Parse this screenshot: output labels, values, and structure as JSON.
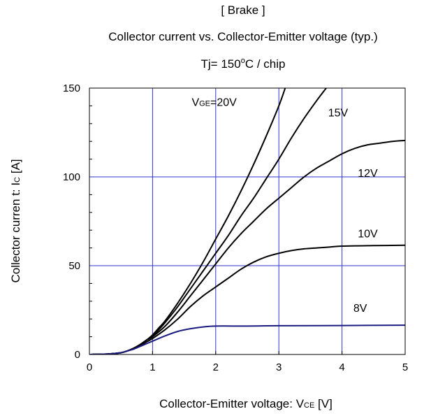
{
  "chart_data": {
    "type": "line",
    "title": "[ Brake ]",
    "subtitle": "Collector current vs. Collector-Emitter voltage (typ.)",
    "condition_parts": {
      "main": "Tj= 150",
      "sup": "o",
      "rest": "C / chip"
    },
    "xlabel_parts": {
      "main": "Collector-Emitter voltage: V",
      "sub": "CE",
      "rest": " [V]"
    },
    "ylabel_parts": {
      "main": "Collector curren t: I",
      "sub": "C",
      "rest": " [A]"
    },
    "xlim": [
      0,
      5
    ],
    "ylim": [
      0,
      150
    ],
    "xticks": [
      "0",
      "1",
      "2",
      "3",
      "4",
      "5"
    ],
    "yticks": [
      "0",
      "50",
      "100",
      "150"
    ],
    "grid": true,
    "colors": {
      "curve": "#000000",
      "curve_8v": "#1a1a80",
      "grid": "#3333cc"
    },
    "series": [
      {
        "name": "V_GE=20V",
        "label_parts": {
          "main": "V",
          "sub": "GE",
          "rest": "=20V"
        },
        "label_at": [
          1.62,
          140
        ],
        "points": [
          [
            0,
            0
          ],
          [
            0.3,
            0.3
          ],
          [
            0.5,
            1
          ],
          [
            0.6,
            2
          ],
          [
            0.7,
            3.5
          ],
          [
            0.8,
            5.5
          ],
          [
            0.9,
            8
          ],
          [
            1.0,
            11
          ],
          [
            1.1,
            15
          ],
          [
            1.2,
            19
          ],
          [
            1.4,
            29
          ],
          [
            1.6,
            40
          ],
          [
            1.8,
            52
          ],
          [
            2.0,
            65
          ],
          [
            2.2,
            78
          ],
          [
            2.4,
            92
          ],
          [
            2.6,
            107
          ],
          [
            2.8,
            123
          ],
          [
            3.0,
            140
          ],
          [
            3.1,
            150
          ]
        ]
      },
      {
        "name": "15V",
        "label_parts": {
          "main": "15V"
        },
        "label_at": [
          3.78,
          134
        ],
        "points": [
          [
            0,
            0
          ],
          [
            0.3,
            0.3
          ],
          [
            0.5,
            1
          ],
          [
            0.6,
            2
          ],
          [
            0.7,
            3.5
          ],
          [
            0.8,
            5.5
          ],
          [
            0.9,
            8
          ],
          [
            1.0,
            10.5
          ],
          [
            1.1,
            14
          ],
          [
            1.2,
            18
          ],
          [
            1.4,
            27
          ],
          [
            1.6,
            37
          ],
          [
            1.8,
            47
          ],
          [
            2.0,
            57
          ],
          [
            2.2,
            67
          ],
          [
            2.4,
            78
          ],
          [
            2.6,
            88
          ],
          [
            2.8,
            99
          ],
          [
            3.0,
            110
          ],
          [
            3.2,
            122
          ],
          [
            3.4,
            133
          ],
          [
            3.6,
            143
          ],
          [
            3.75,
            150
          ]
        ]
      },
      {
        "name": "12V",
        "label_parts": {
          "main": "12V"
        },
        "label_at": [
          4.25,
          100
        ],
        "points": [
          [
            0,
            0
          ],
          [
            0.3,
            0.3
          ],
          [
            0.5,
            1
          ],
          [
            0.6,
            2
          ],
          [
            0.7,
            3.5
          ],
          [
            0.8,
            5.5
          ],
          [
            0.9,
            8
          ],
          [
            1.0,
            10
          ],
          [
            1.2,
            16
          ],
          [
            1.4,
            24
          ],
          [
            1.6,
            33
          ],
          [
            1.8,
            42
          ],
          [
            2.0,
            51
          ],
          [
            2.2,
            60
          ],
          [
            2.4,
            68
          ],
          [
            2.6,
            75
          ],
          [
            2.8,
            82
          ],
          [
            3.0,
            88
          ],
          [
            3.2,
            94
          ],
          [
            3.4,
            100
          ],
          [
            3.6,
            105
          ],
          [
            3.8,
            109
          ],
          [
            4.0,
            113
          ],
          [
            4.2,
            116
          ],
          [
            4.4,
            118
          ],
          [
            4.6,
            119
          ],
          [
            4.8,
            120
          ],
          [
            5.0,
            120.5
          ]
        ]
      },
      {
        "name": "10V",
        "label_parts": {
          "main": "10V"
        },
        "label_at": [
          4.25,
          66
        ],
        "points": [
          [
            0,
            0
          ],
          [
            0.3,
            0.3
          ],
          [
            0.5,
            1
          ],
          [
            0.6,
            2
          ],
          [
            0.7,
            3.5
          ],
          [
            0.8,
            5
          ],
          [
            0.9,
            7
          ],
          [
            1.0,
            9
          ],
          [
            1.2,
            14
          ],
          [
            1.4,
            20
          ],
          [
            1.6,
            27
          ],
          [
            1.8,
            33
          ],
          [
            2.0,
            38
          ],
          [
            2.2,
            43
          ],
          [
            2.4,
            48
          ],
          [
            2.6,
            52
          ],
          [
            2.8,
            55
          ],
          [
            3.0,
            57
          ],
          [
            3.2,
            58.5
          ],
          [
            3.4,
            59.5
          ],
          [
            3.6,
            60
          ],
          [
            3.8,
            60.5
          ],
          [
            4.0,
            61
          ],
          [
            4.5,
            61.3
          ],
          [
            5.0,
            61.5
          ]
        ]
      },
      {
        "name": "8V",
        "label_parts": {
          "main": "8V"
        },
        "label_at": [
          4.18,
          24
        ],
        "points": [
          [
            0,
            0
          ],
          [
            0.3,
            0.3
          ],
          [
            0.5,
            1
          ],
          [
            0.6,
            2
          ],
          [
            0.7,
            3
          ],
          [
            0.8,
            4.5
          ],
          [
            0.9,
            6
          ],
          [
            1.0,
            7.5
          ],
          [
            1.2,
            10.5
          ],
          [
            1.4,
            13
          ],
          [
            1.6,
            14.5
          ],
          [
            1.8,
            15.5
          ],
          [
            2.0,
            16
          ],
          [
            2.5,
            16
          ],
          [
            3.0,
            16.2
          ],
          [
            4.0,
            16.3
          ],
          [
            5.0,
            16.5
          ]
        ]
      }
    ]
  }
}
